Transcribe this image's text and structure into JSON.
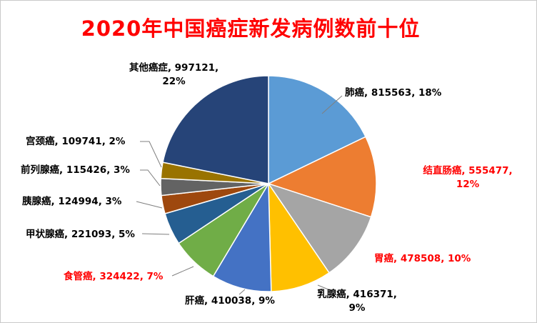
{
  "page": {
    "background": "#FFFFFF",
    "border_color": "#C9C9C9"
  },
  "chart_data": {
    "type": "pie",
    "title": "2020年中国癌症新发病例数前十位",
    "title_color": "#FF0000",
    "direction": "clockwise",
    "start_angle_deg": 0,
    "legend": "none",
    "label_format": "{label}, {value}, {percent}",
    "series": [
      {
        "label": "肺癌",
        "value": 815563,
        "percent": "18%",
        "color": "#5B9BD5",
        "label_color": "#000000"
      },
      {
        "label": "结直肠癌",
        "value": 555477,
        "percent": "12%",
        "color": "#ED7D31",
        "label_color": "#FF0000"
      },
      {
        "label": "胃癌",
        "value": 478508,
        "percent": "10%",
        "color": "#A5A5A5",
        "label_color": "#FF0000"
      },
      {
        "label": "乳腺癌",
        "value": 416371,
        "percent": "9%",
        "color": "#FFC000",
        "label_color": "#000000"
      },
      {
        "label": "肝癌",
        "value": 410038,
        "percent": "9%",
        "color": "#4472C4",
        "label_color": "#000000"
      },
      {
        "label": "食管癌",
        "value": 324422,
        "percent": "7%",
        "color": "#70AD47",
        "label_color": "#FF0000"
      },
      {
        "label": "甲状腺癌",
        "value": 221093,
        "percent": "5%",
        "color": "#255E91",
        "label_color": "#000000"
      },
      {
        "label": "胰腺癌",
        "value": 124994,
        "percent": "3%",
        "color": "#9E480E",
        "label_color": "#000000"
      },
      {
        "label": "前列腺癌",
        "value": 115426,
        "percent": "3%",
        "color": "#636363",
        "label_color": "#000000"
      },
      {
        "label": "宫颈癌",
        "value": 109741,
        "percent": "2%",
        "color": "#997300",
        "label_color": "#000000"
      },
      {
        "label": "其他癌症",
        "value": 997121,
        "percent": "22%",
        "color": "#264478",
        "label_color": "#000000"
      }
    ]
  }
}
